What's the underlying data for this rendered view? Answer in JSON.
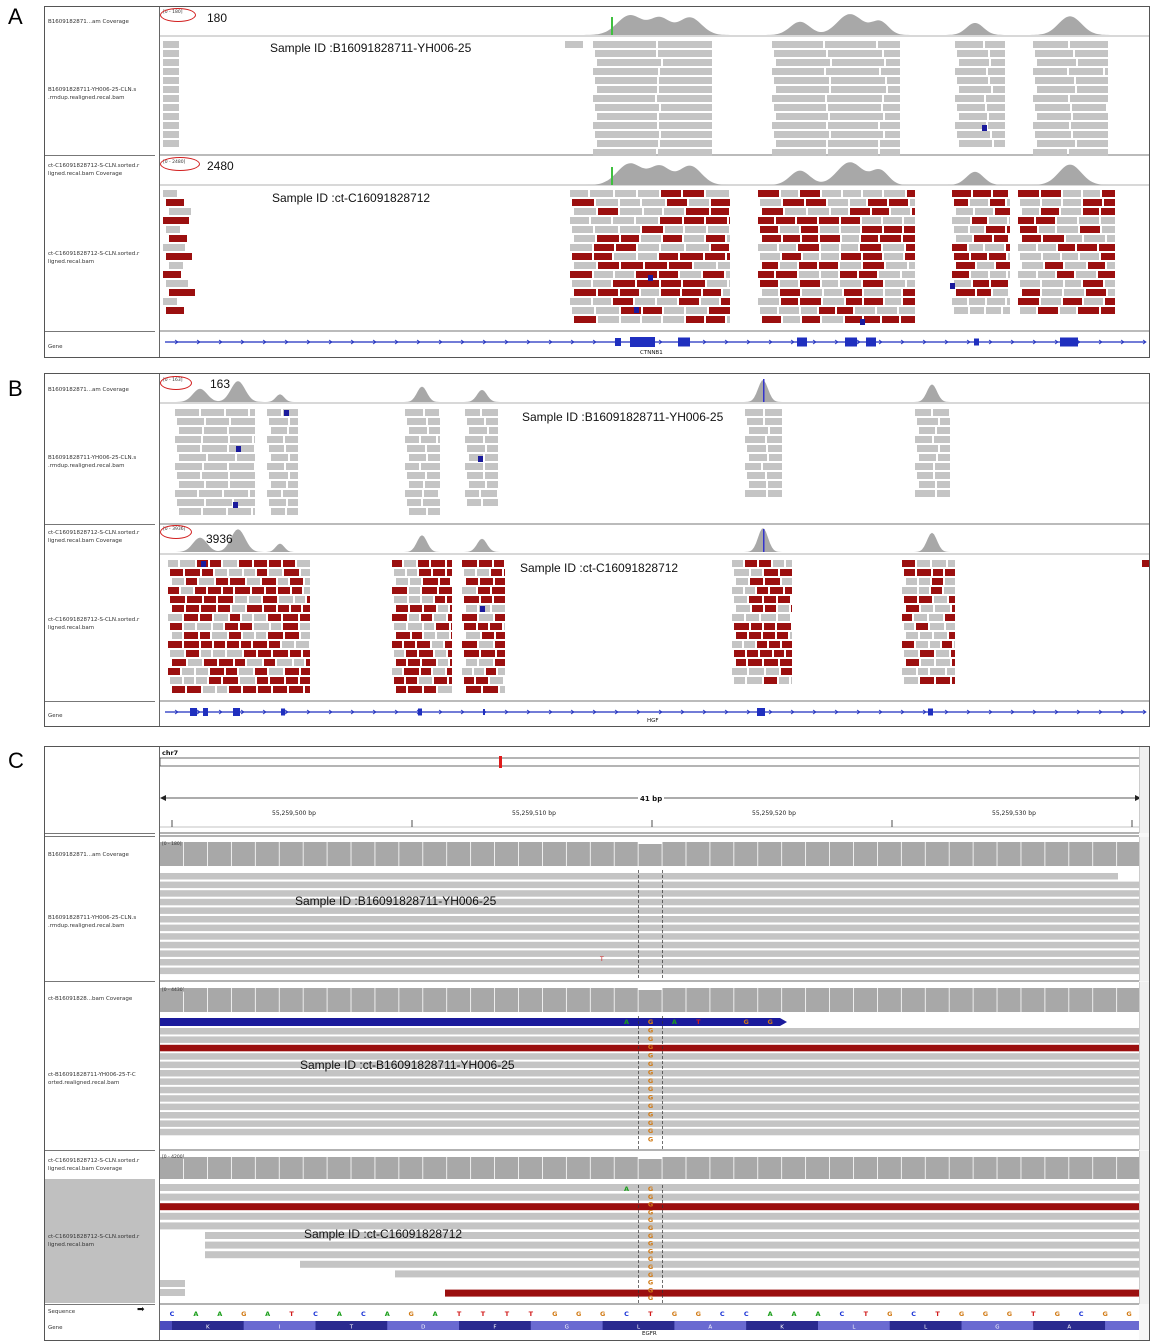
{
  "panel_a": {
    "letter": "A",
    "track1_coverage_label": "B1609182871...am Coverage",
    "track1_bam_label": "B16091828711-YH006-25-CLN.s\n.rmdup.realigned.recal.bam",
    "track1_range": "[0 - 180]",
    "track1_max": "180",
    "track1_sample": "Sample ID :B16091828711-YH006-25",
    "track2_coverage_label": "ct-C16091828712-S-CLN.sorted.r\nligned.recal.bam Coverage",
    "track2_bam_label": "ct-C16091828712-S-CLN.sorted.r\nligned.recal.bam",
    "track2_range": "[0 - 2480]",
    "track2_max": "2480",
    "track2_sample": "Sample ID :ct-C16091828712",
    "gene_label": "Gene",
    "gene_name": "CTNNB1"
  },
  "panel_b": {
    "letter": "B",
    "track1_coverage_label": "B1609182871...am Coverage",
    "track1_bam_label": "B16091828711-YH006-25-CLN.s\n.rmdup.realigned.recal.bam",
    "track1_range": "[0 - 163]",
    "track1_max": "163",
    "track1_sample": "Sample ID :B16091828711-YH006-25",
    "track2_coverage_label": "ct-C16091828712-S-CLN.sorted.r\nligned.recal.bam Coverage",
    "track2_bam_label": "ct-C16091828712-S-CLN.sorted.r\nligned.recal.bam",
    "track2_range": "[0 - 3936]",
    "track2_max": "3936",
    "track2_sample": "Sample ID :ct-C16091828712",
    "gene_label": "Gene",
    "gene_name": "HGF"
  },
  "panel_c": {
    "letter": "C",
    "chrom": "chr7",
    "span": "41 bp",
    "ruler_ticks": [
      "55,259,500 bp",
      "55,259,510 bp",
      "55,259,520 bp",
      "55,259,530 bp"
    ],
    "track1_coverage_label": "B1609182871...am Coverage",
    "track1_bam_label": "B16091828711-YH006-25-CLN.s\n.rmdup.realigned.recal.bam",
    "track1_range": "[0 - 180]",
    "track1_sample": "Sample ID :B16091828711-YH006-25",
    "track1_mismatch": "T",
    "track2_coverage_label": "ct-B16091828...bam Coverage",
    "track2_bam_label": "ct-B16091828711-YH006-25-T-C\norted.realigned.recal.bam",
    "track2_range": "[0 - 4430]",
    "track2_sample": "Sample ID :ct-B16091828711-YH006-25",
    "track3_coverage_label": "ct-C16091828712-S-CLN.sorted.r\nligned.recal.bam Coverage",
    "track3_bam_label": "ct-C16091828712-S-CLN.sorted.r\nligned.recal.bam",
    "track3_range": "[0 - 4200]",
    "track3_sample": "Sample ID :ct-C16091828712",
    "sequence_label": "Sequence",
    "gene_label": "Gene",
    "gene_name": "EGFR",
    "sequence": [
      "C",
      "A",
      "A",
      "G",
      "A",
      "T",
      "C",
      "A",
      "C",
      "A",
      "G",
      "A",
      "T",
      "T",
      "T",
      "T",
      "G",
      "G",
      "G",
      "C",
      "T",
      "G",
      "G",
      "C",
      "C",
      "A",
      "A",
      "A",
      "C",
      "T",
      "G",
      "C",
      "T",
      "G",
      "G",
      "G",
      "T",
      "G",
      "C",
      "G",
      "G"
    ],
    "amino_acids": [
      "K",
      "I",
      "T",
      "D",
      "F",
      "G",
      "L",
      "A",
      "K",
      "L",
      "L",
      "G",
      "A"
    ],
    "base_colors": {
      "A": "#1a9e1a",
      "C": "#1a33d6",
      "G": "#d17a14",
      "T": "#d11a1a"
    },
    "alt_base": "G",
    "blue_read_bases": [
      "A",
      "G",
      "A",
      "T",
      "G",
      "G"
    ]
  },
  "colors": {
    "coverage": "#a8a8a8",
    "read": "#c4c4c4",
    "read_red": "#9b0f0f",
    "read_blue": "#1a1a9c",
    "gene": "#1f2fbf",
    "ellipse": "#d21f1f"
  }
}
